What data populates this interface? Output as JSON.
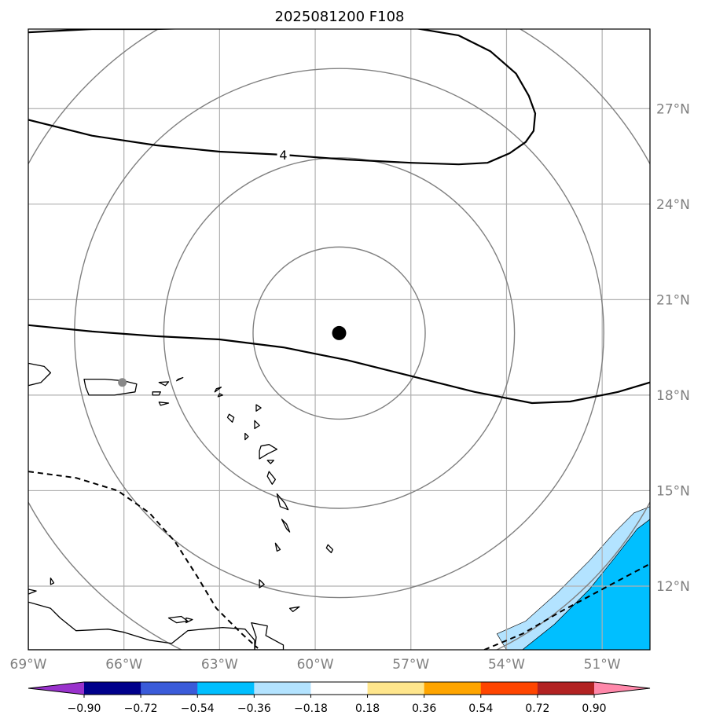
{
  "title": "2025081200 F108",
  "map": {
    "lon_range": [
      -69,
      -49.5
    ],
    "lat_range": [
      10,
      29.5
    ],
    "lon_ticks": [
      {
        "value": -69,
        "label": "69°W"
      },
      {
        "value": -66,
        "label": "66°W"
      },
      {
        "value": -63,
        "label": "63°W"
      },
      {
        "value": -60,
        "label": "60°W"
      },
      {
        "value": -57,
        "label": "57°W"
      },
      {
        "value": -54,
        "label": "54°W"
      },
      {
        "value": -51,
        "label": "51°W"
      }
    ],
    "lat_ticks": [
      {
        "value": 12,
        "label": "12°N"
      },
      {
        "value": 15,
        "label": "15°N"
      },
      {
        "value": 18,
        "label": "18°N"
      },
      {
        "value": 21,
        "label": "21°N"
      },
      {
        "value": 24,
        "label": "24°N"
      },
      {
        "value": 27,
        "label": "27°N"
      }
    ],
    "grid": true,
    "storm_center": {
      "lon": -59.25,
      "lat": 19.95
    },
    "station_marker": {
      "lon": -66.05,
      "lat": 18.4
    },
    "range_rings_deg": [
      2.7,
      5.5,
      8.3,
      11.1
    ],
    "contour_label": "4",
    "contour_label_pos": {
      "lon": -61.0,
      "lat": 25.55
    },
    "contours_solid": [
      [
        [
          -69,
          29.4
        ],
        [
          -67,
          29.5
        ],
        [
          -65,
          29.5
        ],
        [
          -63,
          29.55
        ],
        [
          -61,
          29.7
        ],
        [
          -59,
          29.65
        ],
        [
          -57,
          29.55
        ],
        [
          -55.5,
          29.3
        ],
        [
          -54.5,
          28.8
        ],
        [
          -53.7,
          28.1
        ],
        [
          -53.3,
          27.4
        ],
        [
          -53.1,
          26.85
        ],
        [
          -53.15,
          26.3
        ],
        [
          -53.4,
          25.95
        ],
        [
          -53.9,
          25.6
        ],
        [
          -54.6,
          25.3
        ],
        [
          -55.5,
          25.25
        ],
        [
          -57,
          25.3
        ],
        [
          -59,
          25.4
        ],
        [
          -61,
          25.55
        ],
        [
          -63,
          25.65
        ],
        [
          -65,
          25.85
        ],
        [
          -67,
          26.15
        ],
        [
          -69,
          26.65
        ]
      ],
      [
        [
          -69,
          20.2
        ],
        [
          -67,
          20.0
        ],
        [
          -65,
          19.85
        ],
        [
          -63,
          19.75
        ],
        [
          -61,
          19.5
        ],
        [
          -59,
          19.1
        ],
        [
          -57,
          18.6
        ],
        [
          -55,
          18.1
        ],
        [
          -53.2,
          17.75
        ],
        [
          -52,
          17.8
        ],
        [
          -50.5,
          18.1
        ],
        [
          -49.5,
          18.4
        ]
      ]
    ],
    "contours_dashed": [
      [
        [
          -69,
          15.6
        ],
        [
          -67.5,
          15.4
        ],
        [
          -66.2,
          15.0
        ],
        [
          -65.2,
          14.3
        ],
        [
          -64.4,
          13.4
        ],
        [
          -63.7,
          12.3
        ],
        [
          -63.1,
          11.3
        ],
        [
          -62.3,
          10.5
        ],
        [
          -61.8,
          10.05
        ]
      ],
      [
        [
          -54.7,
          10.0
        ],
        [
          -53.5,
          10.5
        ],
        [
          -52.3,
          11.2
        ],
        [
          -51.0,
          11.9
        ],
        [
          -49.5,
          12.7
        ]
      ]
    ],
    "shaded_regions": [
      {
        "color": "#00bfff",
        "outline": [
          [
            -53.5,
            10.0
          ],
          [
            -52.5,
            10.8
          ],
          [
            -51.4,
            11.9
          ],
          [
            -50.6,
            12.9
          ],
          [
            -49.9,
            13.8
          ],
          [
            -49.5,
            14.1
          ],
          [
            -49.5,
            10.0
          ]
        ]
      },
      {
        "color": "#b3e3ff",
        "outline": [
          [
            -54.3,
            10.5
          ],
          [
            -53.4,
            10.9
          ],
          [
            -52.4,
            11.8
          ],
          [
            -51.4,
            12.8
          ],
          [
            -50.6,
            13.7
          ],
          [
            -50.0,
            14.3
          ],
          [
            -49.5,
            14.5
          ],
          [
            -49.5,
            14.1
          ],
          [
            -49.9,
            13.8
          ],
          [
            -50.6,
            12.9
          ],
          [
            -51.4,
            11.9
          ],
          [
            -52.5,
            10.8
          ],
          [
            -53.5,
            10.0
          ],
          [
            -54.0,
            10.0
          ]
        ]
      }
    ],
    "land": [
      [
        [
          -67.25,
          18.5
        ],
        [
          -66.6,
          18.5
        ],
        [
          -66.0,
          18.45
        ],
        [
          -65.6,
          18.35
        ],
        [
          -65.65,
          18.1
        ],
        [
          -66.3,
          18.0
        ],
        [
          -67.1,
          18.0
        ],
        [
          -67.2,
          18.25
        ]
      ],
      [
        [
          -69,
          19.0
        ],
        [
          -68.5,
          18.9
        ],
        [
          -68.3,
          18.7
        ],
        [
          -68.6,
          18.4
        ],
        [
          -69,
          18.3
        ]
      ],
      [
        [
          -65.1,
          18.1
        ],
        [
          -64.85,
          18.1
        ],
        [
          -64.9,
          18.0
        ],
        [
          -65.1,
          18.0
        ]
      ],
      [
        [
          -64.9,
          18.4
        ],
        [
          -64.6,
          18.42
        ],
        [
          -64.7,
          18.3
        ]
      ],
      [
        [
          -64.3,
          18.5
        ],
        [
          -64.15,
          18.55
        ],
        [
          -64.35,
          18.45
        ]
      ],
      [
        [
          -64.9,
          17.78
        ],
        [
          -64.6,
          17.75
        ],
        [
          -64.85,
          17.68
        ]
      ],
      [
        [
          -63.1,
          18.2
        ],
        [
          -62.95,
          18.25
        ],
        [
          -63.15,
          18.1
        ]
      ],
      [
        [
          -63.0,
          18.05
        ],
        [
          -62.9,
          18.0
        ],
        [
          -63.05,
          17.95
        ]
      ],
      [
        [
          -62.7,
          17.4
        ],
        [
          -62.55,
          17.3
        ],
        [
          -62.6,
          17.15
        ],
        [
          -62.75,
          17.3
        ]
      ],
      [
        [
          -61.85,
          17.7
        ],
        [
          -61.7,
          17.6
        ],
        [
          -61.85,
          17.5
        ]
      ],
      [
        [
          -61.9,
          17.2
        ],
        [
          -61.75,
          17.05
        ],
        [
          -61.9,
          16.95
        ]
      ],
      [
        [
          -62.2,
          16.8
        ],
        [
          -62.1,
          16.7
        ],
        [
          -62.2,
          16.6
        ]
      ],
      [
        [
          -61.7,
          16.4
        ],
        [
          -61.45,
          16.45
        ],
        [
          -61.2,
          16.3
        ],
        [
          -61.5,
          16.15
        ],
        [
          -61.75,
          16.0
        ],
        [
          -61.75,
          16.25
        ]
      ],
      [
        [
          -61.5,
          15.95
        ],
        [
          -61.3,
          15.95
        ],
        [
          -61.4,
          15.85
        ]
      ],
      [
        [
          -61.45,
          15.6
        ],
        [
          -61.25,
          15.35
        ],
        [
          -61.35,
          15.2
        ],
        [
          -61.5,
          15.45
        ]
      ],
      [
        [
          -61.2,
          14.9
        ],
        [
          -60.95,
          14.6
        ],
        [
          -60.85,
          14.4
        ],
        [
          -61.1,
          14.5
        ]
      ],
      [
        [
          -61.05,
          14.1
        ],
        [
          -60.9,
          13.8
        ],
        [
          -60.8,
          13.7
        ],
        [
          -60.9,
          13.95
        ]
      ],
      [
        [
          -61.25,
          13.35
        ],
        [
          -61.1,
          13.15
        ],
        [
          -61.2,
          13.1
        ]
      ],
      [
        [
          -59.6,
          13.3
        ],
        [
          -59.45,
          13.15
        ],
        [
          -59.5,
          13.05
        ],
        [
          -59.65,
          13.2
        ]
      ],
      [
        [
          -61.75,
          12.2
        ],
        [
          -61.6,
          12.05
        ],
        [
          -61.75,
          11.95
        ]
      ],
      [
        [
          -60.8,
          11.3
        ],
        [
          -60.5,
          11.35
        ],
        [
          -60.7,
          11.2
        ]
      ],
      [
        [
          -69,
          11.9
        ],
        [
          -68.75,
          11.85
        ],
        [
          -69,
          11.75
        ]
      ],
      [
        [
          -68.3,
          12.25
        ],
        [
          -68.2,
          12.1
        ],
        [
          -68.3,
          12.05
        ]
      ],
      [
        [
          -69,
          11.5
        ],
        [
          -68.3,
          11.3
        ],
        [
          -68.0,
          11.0
        ],
        [
          -67.5,
          10.6
        ],
        [
          -66.5,
          10.65
        ],
        [
          -66,
          10.55
        ],
        [
          -65.2,
          10.3
        ],
        [
          -64.5,
          10.2
        ],
        [
          -64.0,
          10.6
        ],
        [
          -63.5,
          10.65
        ],
        [
          -62.9,
          10.7
        ],
        [
          -62.2,
          10.65
        ],
        [
          -61.9,
          10.3
        ],
        [
          -61.9,
          10.0
        ],
        [
          -69,
          10.0
        ]
      ],
      [
        [
          -62.0,
          10.85
        ],
        [
          -61.5,
          10.75
        ],
        [
          -61.55,
          10.45
        ],
        [
          -61.0,
          10.15
        ],
        [
          -61.0,
          10.0
        ],
        [
          -61.9,
          10.0
        ],
        [
          -61.85,
          10.4
        ]
      ],
      [
        [
          -64.6,
          11.0
        ],
        [
          -64.2,
          11.05
        ],
        [
          -64.0,
          10.9
        ],
        [
          -64.35,
          10.85
        ]
      ],
      [
        [
          -64.05,
          11.0
        ],
        [
          -63.85,
          10.95
        ],
        [
          -64.05,
          10.85
        ]
      ]
    ]
  },
  "colorbar": {
    "colors": [
      "#9932cc",
      "#00008b",
      "#3a5bd9",
      "#00bfff",
      "#b3e3ff",
      "#ffffff",
      "#ffe68c",
      "#ffa500",
      "#ff4500",
      "#b22222",
      "#ff88aa"
    ],
    "labels": [
      "−0.90",
      "−0.72",
      "−0.54",
      "−0.36",
      "−0.18",
      "0.18",
      "0.36",
      "0.54",
      "0.72",
      "0.90"
    ]
  }
}
